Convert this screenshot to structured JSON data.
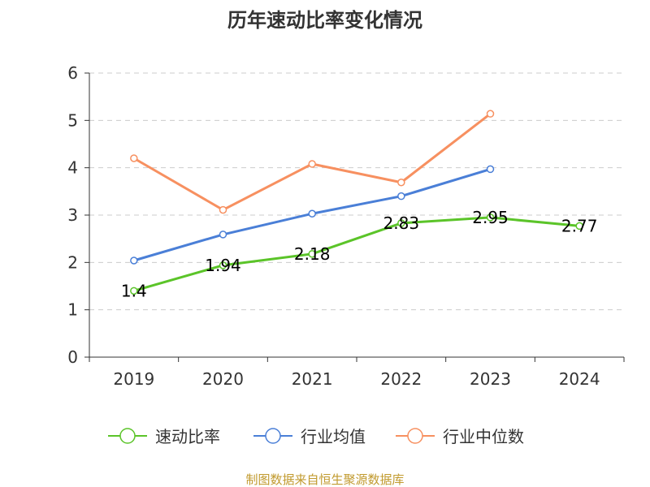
{
  "chart_data": {
    "type": "line",
    "title": "历年速动比率变化情况",
    "categories": [
      "2019",
      "2020",
      "2021",
      "2022",
      "2023",
      "2024"
    ],
    "ylim": [
      0,
      6
    ],
    "yticks": [
      "0",
      "1",
      "2",
      "3",
      "4",
      "5",
      "6"
    ],
    "grid": true,
    "legend_position": "bottom",
    "series": [
      {
        "name": "速动比率",
        "color": "#5bc429",
        "values": [
          1.4,
          1.94,
          2.18,
          2.83,
          2.95,
          2.77
        ],
        "labels": [
          "1.4",
          "1.94",
          "2.18",
          "2.83",
          "2.95",
          "2.77"
        ]
      },
      {
        "name": "行业均值",
        "color": "#4a7fd7",
        "values": [
          2.04,
          2.59,
          3.03,
          3.4,
          3.97,
          null
        ]
      },
      {
        "name": "行业中位数",
        "color": "#f79060",
        "values": [
          4.2,
          3.11,
          4.08,
          3.69,
          5.14,
          null
        ]
      }
    ]
  },
  "source": "制图数据来自恒生聚源数据库"
}
